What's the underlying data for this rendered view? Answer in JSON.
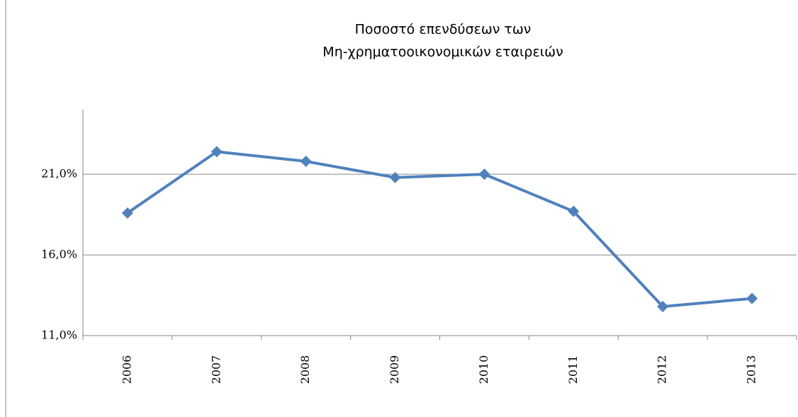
{
  "chart_data": {
    "type": "line",
    "title": [
      "Ποσοστό επενδύσεων των",
      "Μη-χρηματοοικονομικών εταιρειών"
    ],
    "categories": [
      "2006",
      "2007",
      "2008",
      "2009",
      "2010",
      "2011",
      "2012",
      "2013"
    ],
    "series": [
      {
        "color": "#4f81bd",
        "values": [
          18.6,
          22.4,
          21.8,
          20.8,
          21.0,
          18.7,
          12.8,
          13.3
        ]
      }
    ],
    "ylim": [
      11,
      25
    ],
    "yticks": [
      {
        "value": 11,
        "label": "11,0%"
      },
      {
        "value": 16,
        "label": "16,0%"
      },
      {
        "value": 21,
        "label": "21,0%"
      }
    ],
    "grid": true
  }
}
